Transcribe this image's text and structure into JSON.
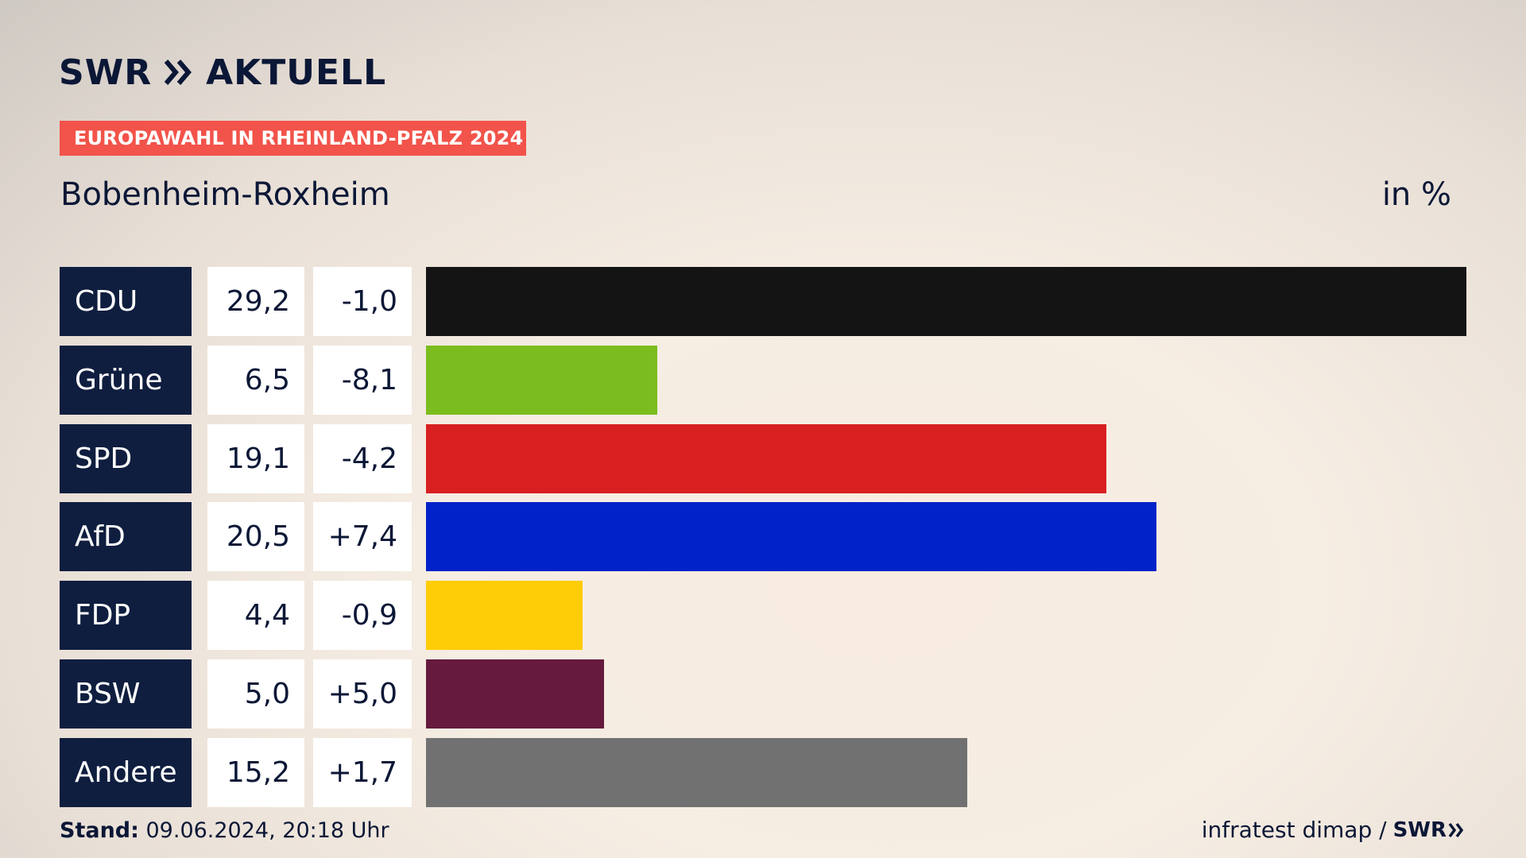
{
  "header": {
    "brand_left": "SWR",
    "brand_right": "AKTUELL",
    "badge": "EUROPAWAHL IN RHEINLAND-PFALZ 2024",
    "subtitle": "Bobenheim-Roxheim",
    "unit": "in %"
  },
  "footer": {
    "stand_label": "Stand:",
    "stand_value": " 09.06.2024, 20:18 Uhr",
    "source": "infratest dimap /",
    "logo": "SWR"
  },
  "chart_data": {
    "type": "bar",
    "title": "Bobenheim-Roxheim",
    "unit": "in %",
    "categories": [
      "CDU",
      "Grüne",
      "SPD",
      "AfD",
      "FDP",
      "BSW",
      "Andere"
    ],
    "values": [
      29.2,
      6.5,
      19.1,
      20.5,
      4.4,
      5.0,
      15.2
    ],
    "value_labels": [
      "29,2",
      "6,5",
      "19,1",
      "20,5",
      "4,4",
      "5,0",
      "15,2"
    ],
    "diff_labels": [
      "-1,0",
      "-8,1",
      "-4,2",
      "+7,4",
      "-0,9",
      "+5,0",
      "+1,7"
    ],
    "colors": [
      "#141414",
      "#7bbd1e",
      "#d82020",
      "#0022c8",
      "#fecd05",
      "#661a3e",
      "#717172"
    ],
    "xlim": [
      0,
      29.2
    ]
  }
}
